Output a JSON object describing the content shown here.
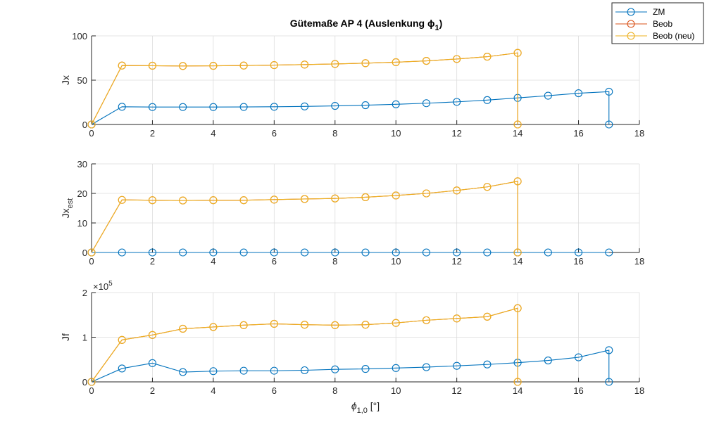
{
  "title": "Gütemaße AP 4 (Auslenkung ϕ",
  "title_subscript": "1",
  "title_suffix": ")",
  "xlabel": "ϕ",
  "xlabel_subscript": "1,0",
  "xlabel_unit": " [°]",
  "legend": {
    "placement": "top-right, outside",
    "entries": [
      {
        "label": "ZM",
        "color": "#0072BD"
      },
      {
        "label": "Beob",
        "color": "#D95319"
      },
      {
        "label": "Beob (neu)",
        "color": "#EDB120"
      }
    ]
  },
  "colors": {
    "zm": "#0072BD",
    "beob": "#D95319",
    "beob_neu": "#EDB120",
    "grid": "#dcdcdc",
    "axis": "#262626"
  },
  "chart_data": [
    {
      "type": "line",
      "title": "Gütemaße AP 4 (Auslenkung ϕ1)",
      "ylabel": "Jx",
      "ylabel_subscript": "",
      "exponent": "",
      "xlim": [
        0,
        18
      ],
      "ylim": [
        0,
        100
      ],
      "xticks": [
        0,
        2,
        4,
        6,
        8,
        10,
        12,
        14,
        16,
        18
      ],
      "xtick_labels": [
        "0",
        "2",
        "4",
        "6",
        "8",
        "10",
        "12",
        "14",
        "16",
        "18"
      ],
      "yticks": [
        0,
        50,
        100
      ],
      "ytick_labels": [
        "0",
        "50",
        "100"
      ],
      "grid": true,
      "series": [
        {
          "name": "ZM",
          "color": "#0072BD",
          "x": [
            0,
            1,
            2,
            3,
            4,
            5,
            6,
            7,
            8,
            9,
            10,
            11,
            12,
            13,
            14,
            15,
            16,
            17,
            17
          ],
          "y": [
            0,
            20,
            19.7,
            19.7,
            19.7,
            19.8,
            20,
            20.4,
            21,
            21.8,
            22.8,
            24,
            25.5,
            27.5,
            30,
            32.5,
            35.3,
            37,
            0
          ]
        },
        {
          "name": "Beob",
          "color": "#D95319",
          "x": [
            0,
            1,
            2,
            3,
            4,
            5,
            6,
            7,
            8,
            9,
            10,
            11,
            12,
            13,
            14,
            14
          ],
          "y": [
            0,
            66.5,
            66.3,
            66,
            66.2,
            66.5,
            67,
            67.6,
            68.3,
            69.2,
            70.3,
            71.8,
            73.9,
            76.5,
            80.8,
            0
          ]
        },
        {
          "name": "Beob (neu)",
          "color": "#EDB120",
          "x": [
            0,
            1,
            2,
            3,
            4,
            5,
            6,
            7,
            8,
            9,
            10,
            11,
            12,
            13,
            14,
            14
          ],
          "y": [
            0,
            66.5,
            66.3,
            66,
            66.2,
            66.5,
            67,
            67.6,
            68.3,
            69.2,
            70.3,
            71.8,
            73.9,
            76.5,
            80.8,
            0
          ]
        }
      ]
    },
    {
      "type": "line",
      "title": "",
      "ylabel": "Jx",
      "ylabel_subscript": "est",
      "exponent": "",
      "xlim": [
        0,
        18
      ],
      "ylim": [
        0,
        30
      ],
      "xticks": [
        0,
        2,
        4,
        6,
        8,
        10,
        12,
        14,
        16,
        18
      ],
      "xtick_labels": [
        "0",
        "2",
        "4",
        "6",
        "8",
        "10",
        "12",
        "14",
        "16",
        "18"
      ],
      "yticks": [
        0,
        10,
        20,
        30
      ],
      "ytick_labels": [
        "0",
        "10",
        "20",
        "30"
      ],
      "grid": true,
      "series": [
        {
          "name": "ZM",
          "color": "#0072BD",
          "x": [
            0,
            1,
            2,
            3,
            4,
            5,
            6,
            7,
            8,
            9,
            10,
            11,
            12,
            13,
            14,
            15,
            16,
            17
          ],
          "y": [
            0,
            0,
            0,
            0,
            0,
            0,
            0,
            0,
            0,
            0,
            0,
            0,
            0,
            0,
            0,
            0,
            0,
            0
          ]
        },
        {
          "name": "Beob",
          "color": "#D95319",
          "x": [
            0,
            1,
            2,
            3,
            4,
            5,
            6,
            7,
            8,
            9,
            10,
            11,
            12,
            13,
            14,
            14
          ],
          "y": [
            0,
            17.8,
            17.7,
            17.6,
            17.7,
            17.7,
            17.9,
            18.1,
            18.3,
            18.7,
            19.3,
            20,
            21,
            22.2,
            24.1,
            0
          ]
        },
        {
          "name": "Beob (neu)",
          "color": "#EDB120",
          "x": [
            0,
            1,
            2,
            3,
            4,
            5,
            6,
            7,
            8,
            9,
            10,
            11,
            12,
            13,
            14,
            14
          ],
          "y": [
            0,
            17.8,
            17.7,
            17.6,
            17.7,
            17.7,
            17.9,
            18.1,
            18.3,
            18.7,
            19.3,
            20,
            21,
            22.2,
            24.1,
            0
          ]
        }
      ]
    },
    {
      "type": "line",
      "title": "",
      "ylabel": "Jf",
      "ylabel_subscript": "",
      "exponent": "×10",
      "exponent_power": "5",
      "xlim": [
        0,
        18
      ],
      "ylim": [
        0,
        2
      ],
      "xticks": [
        0,
        2,
        4,
        6,
        8,
        10,
        12,
        14,
        16,
        18
      ],
      "xtick_labels": [
        "0",
        "2",
        "4",
        "6",
        "8",
        "10",
        "12",
        "14",
        "16",
        "18"
      ],
      "yticks": [
        0,
        1,
        2
      ],
      "ytick_labels": [
        "0",
        "1",
        "2"
      ],
      "grid": true,
      "series": [
        {
          "name": "ZM",
          "color": "#0072BD",
          "x": [
            0,
            1,
            2,
            3,
            4,
            5,
            6,
            7,
            8,
            9,
            10,
            11,
            12,
            13,
            14,
            15,
            16,
            17,
            17
          ],
          "y": [
            0,
            0.3,
            0.42,
            0.22,
            0.24,
            0.25,
            0.25,
            0.26,
            0.28,
            0.29,
            0.31,
            0.33,
            0.36,
            0.39,
            0.43,
            0.48,
            0.55,
            0.71,
            0
          ]
        },
        {
          "name": "Beob",
          "color": "#D95319",
          "x": [
            0,
            1,
            2,
            3,
            4,
            5,
            6,
            7,
            8,
            9,
            10,
            11,
            12,
            13,
            14,
            14
          ],
          "y": [
            0,
            0.94,
            1.05,
            1.19,
            1.23,
            1.27,
            1.3,
            1.28,
            1.27,
            1.28,
            1.32,
            1.38,
            1.42,
            1.46,
            1.65,
            0
          ]
        },
        {
          "name": "Beob (neu)",
          "color": "#EDB120",
          "x": [
            0,
            1,
            2,
            3,
            4,
            5,
            6,
            7,
            8,
            9,
            10,
            11,
            12,
            13,
            14,
            14
          ],
          "y": [
            0,
            0.94,
            1.05,
            1.19,
            1.23,
            1.27,
            1.3,
            1.28,
            1.27,
            1.28,
            1.32,
            1.38,
            1.42,
            1.46,
            1.65,
            0
          ]
        }
      ]
    }
  ]
}
